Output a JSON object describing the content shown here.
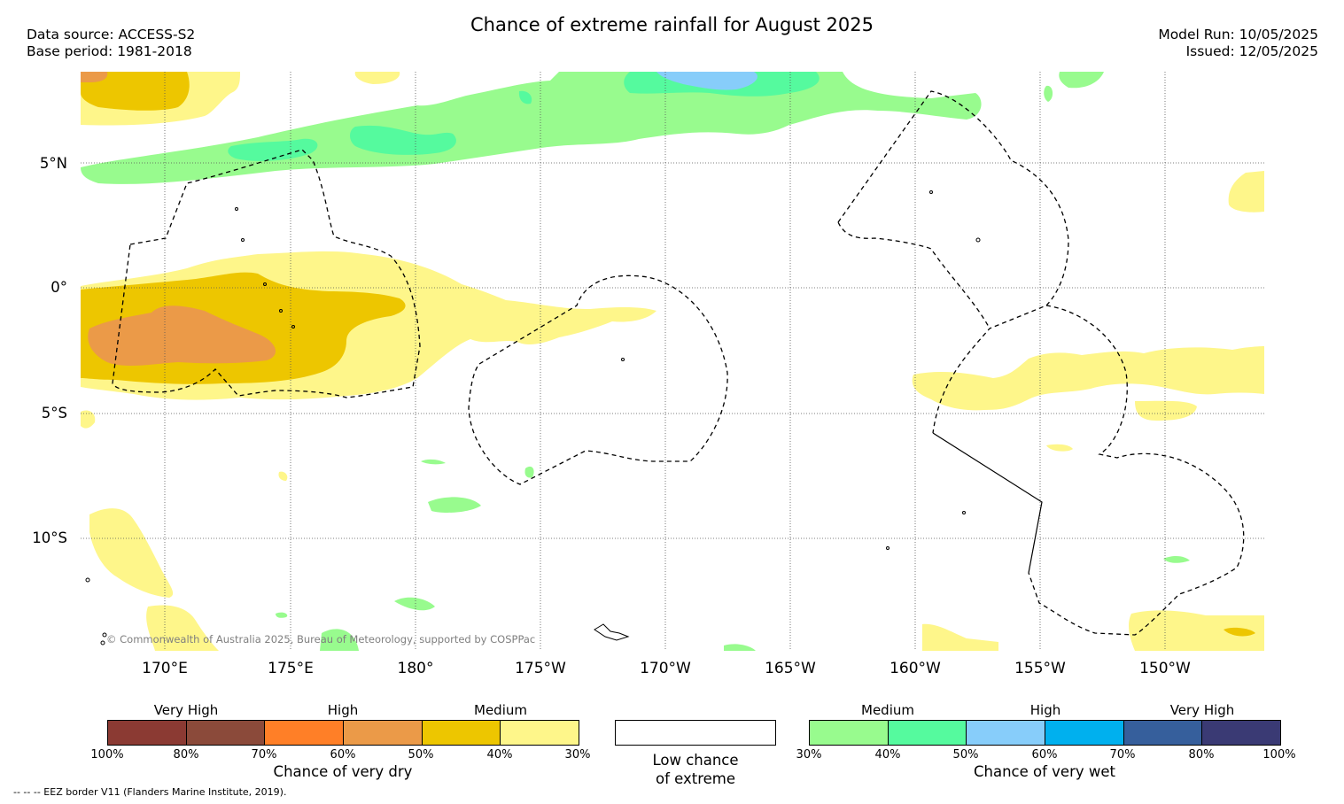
{
  "title": "Chance of extreme rainfall for August 2025",
  "header": {
    "data_source": "Data source: ACCESS-S2",
    "base_period": "Base period: 1981-2018",
    "model_run": "Model Run: 10/05/2025",
    "issued": "Issued: 12/05/2025"
  },
  "map": {
    "lat_labels": [
      "5°N",
      "0°",
      "5°S",
      "10°S"
    ],
    "lon_labels": [
      "170°E",
      "175°E",
      "180°",
      "175°W",
      "170°W",
      "165°W",
      "160°W",
      "155°W",
      "150°W"
    ],
    "copyright": "© Commonwealth of Australia 2025, Bureau of Meteorology, supported by COSPPac"
  },
  "legend": {
    "dry": {
      "title": "Chance of very dry",
      "headings": [
        "Very High",
        "High",
        "Medium"
      ],
      "ticks": [
        "100%",
        "80%",
        "70%",
        "60%",
        "50%",
        "40%",
        "30%"
      ],
      "colors": [
        "#8b3a33",
        "#8b4a3a",
        "#ff7f27",
        "#eb9a48",
        "#edc600",
        "#fef68a"
      ]
    },
    "neutral": {
      "label_line1": "Low chance",
      "label_line2": "of extreme"
    },
    "wet": {
      "title": "Chance of very wet",
      "headings": [
        "Medium",
        "High",
        "Very High"
      ],
      "ticks": [
        "30%",
        "40%",
        "50%",
        "60%",
        "70%",
        "80%",
        "100%"
      ],
      "colors": [
        "#98fb8e",
        "#55fa9e",
        "#87cdfa",
        "#00b0ee",
        "#365f9c",
        "#3a3a74"
      ]
    }
  },
  "footnote": "-- -- -- EEZ border V11 (Flanders Marine Institute, 2019)."
}
